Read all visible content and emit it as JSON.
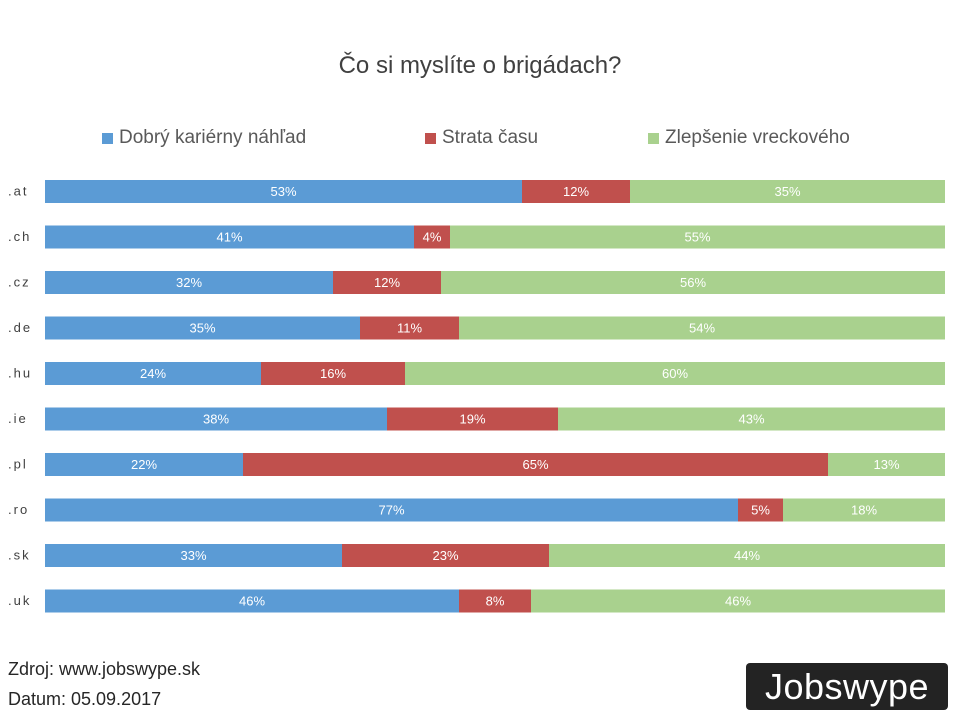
{
  "chart_data": {
    "type": "bar",
    "orientation": "horizontal",
    "stacked": true,
    "title": "Čo si myslíte o brigádach?",
    "categories": [
      ".at",
      ".ch",
      ".cz",
      ".de",
      ".hu",
      ".ie",
      ".pl",
      ".ro",
      ".sk",
      ".uk"
    ],
    "series": [
      {
        "name": "Dobrý kariérny náhľad",
        "color": "#5b9bd5",
        "values": [
          53,
          41,
          32,
          35,
          24,
          38,
          22,
          77,
          33,
          46
        ]
      },
      {
        "name": "Strata času",
        "color": "#c0504d",
        "values": [
          12,
          4,
          12,
          11,
          16,
          19,
          65,
          5,
          23,
          8
        ]
      },
      {
        "name": "Zlepšenie vreckového",
        "color": "#a9d18e",
        "values": [
          35,
          55,
          56,
          54,
          60,
          43,
          13,
          18,
          44,
          46
        ]
      }
    ],
    "value_suffix": "%",
    "xlim": [
      0,
      100
    ],
    "legend": "top",
    "grid": false
  },
  "footer": {
    "source": "Zdroj: www.jobswype.sk",
    "date": "Datum: 05.09.2017"
  },
  "logo": {
    "text": "Jobswype"
  }
}
